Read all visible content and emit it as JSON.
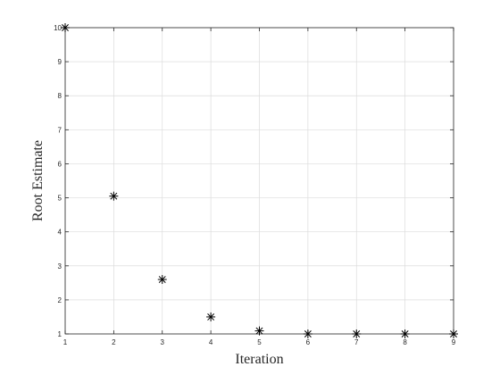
{
  "chart_data": {
    "type": "scatter",
    "title": "",
    "xlabel": "Iteration",
    "ylabel": "Root Estimate",
    "xlim": [
      1,
      9
    ],
    "ylim": [
      1,
      10
    ],
    "xticks": [
      1,
      2,
      3,
      4,
      5,
      6,
      7,
      8,
      9
    ],
    "yticks": [
      1,
      2,
      3,
      4,
      5,
      6,
      7,
      8,
      9,
      10
    ],
    "grid": true,
    "marker": "asterisk",
    "marker_color": "#000000",
    "series": [
      {
        "x": [
          1,
          2,
          3,
          4,
          5,
          6,
          7,
          8,
          9
        ],
        "y": [
          10,
          5.05,
          2.6,
          1.5,
          1.09,
          1.0,
          1.0,
          1.0,
          1.0
        ]
      }
    ]
  }
}
